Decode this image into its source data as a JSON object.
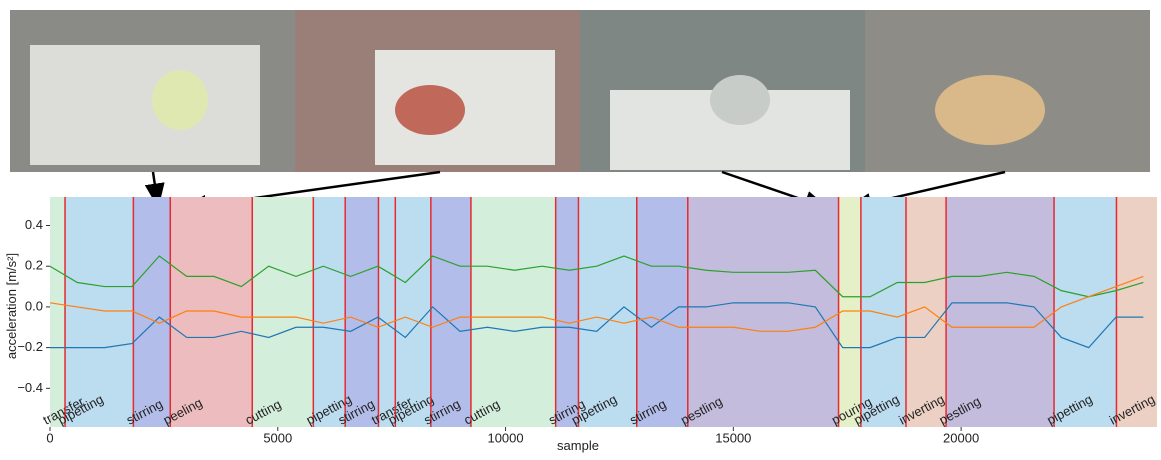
{
  "chart_data": {
    "type": "line",
    "xlabel": "sample",
    "ylabel": "acceleration [m/s²]",
    "xlim": [
      0,
      24300
    ],
    "ylim": [
      -0.59,
      0.54
    ],
    "xticks": [
      0,
      5000,
      10000,
      15000,
      20000
    ],
    "yticks": [
      0.4,
      0.2,
      {
        "value": 0,
        "label": "0.0"
      },
      {
        "value": -0.2,
        "label": "−0.2"
      },
      {
        "value": -0.4,
        "label": "−0.4"
      }
    ],
    "boundary_color": "#e8292f",
    "segments": [
      {
        "label": "transfer",
        "start": 0,
        "end": 330,
        "color": "#d4eedc"
      },
      {
        "label": "pipetting",
        "start": 330,
        "end": 1830,
        "color": "#bcdcf0"
      },
      {
        "label": "stirring",
        "start": 1830,
        "end": 2640,
        "color": "#b3bde9"
      },
      {
        "label": "peeling",
        "start": 2640,
        "end": 4440,
        "color": "#ecbcbe"
      },
      {
        "label": "cutting",
        "start": 4440,
        "end": 5780,
        "color": "#d4eedc"
      },
      {
        "label": "pipetting",
        "start": 5780,
        "end": 6480,
        "color": "#bcdcf0"
      },
      {
        "label": "stirring",
        "start": 6480,
        "end": 7210,
        "color": "#b3bde9"
      },
      {
        "label": "transfer",
        "start": 7210,
        "end": 7580,
        "color": "#bcdcf0"
      },
      {
        "label": "pipetting",
        "start": 7580,
        "end": 8360,
        "color": "#bcdcf0"
      },
      {
        "label": "stirring",
        "start": 8360,
        "end": 9240,
        "color": "#b3bde9"
      },
      {
        "label": "cutting",
        "start": 9240,
        "end": 11100,
        "color": "#d4eedc"
      },
      {
        "label": "stirring",
        "start": 11100,
        "end": 11600,
        "color": "#b3bde9"
      },
      {
        "label": "pipetting",
        "start": 11600,
        "end": 12880,
        "color": "#bcdcf0"
      },
      {
        "label": "stirring",
        "start": 12880,
        "end": 14000,
        "color": "#b3bde9"
      },
      {
        "label": "pestling",
        "start": 14000,
        "end": 17310,
        "color": "#c3bcdc"
      },
      {
        "label": "pouring",
        "start": 17310,
        "end": 17800,
        "color": "#e6f0c8"
      },
      {
        "label": "pipetting",
        "start": 17800,
        "end": 18790,
        "color": "#bcdcf0"
      },
      {
        "label": "inverting",
        "start": 18790,
        "end": 19670,
        "color": "#edd0c4"
      },
      {
        "label": "pestling",
        "start": 19670,
        "end": 22040,
        "color": "#c3bcdc"
      },
      {
        "label": "pipetting",
        "start": 22040,
        "end": 23410,
        "color": "#bcdcf0"
      },
      {
        "label": "inverting",
        "start": 23410,
        "end": 24300,
        "color": "#edd0c4"
      }
    ],
    "x": [
      0,
      600,
      1200,
      1800,
      2400,
      3000,
      3600,
      4200,
      4800,
      5400,
      6000,
      6600,
      7200,
      7800,
      8400,
      9000,
      9600,
      10200,
      10800,
      11400,
      12000,
      12600,
      13200,
      13800,
      14400,
      15000,
      15600,
      16200,
      16800,
      17400,
      18000,
      18600,
      19200,
      19800,
      20400,
      21000,
      21600,
      22200,
      22800,
      23400,
      24000
    ],
    "series": [
      {
        "color": "#2ca02c",
        "values": [
          0.2,
          0.12,
          0.1,
          0.1,
          0.25,
          0.15,
          0.15,
          0.1,
          0.2,
          0.15,
          0.2,
          0.15,
          0.2,
          0.12,
          0.25,
          0.2,
          0.2,
          0.18,
          0.2,
          0.18,
          0.2,
          0.25,
          0.2,
          0.2,
          0.18,
          0.17,
          0.17,
          0.17,
          0.18,
          0.05,
          0.05,
          0.12,
          0.12,
          0.15,
          0.15,
          0.17,
          0.15,
          0.08,
          0.05,
          0.08,
          0.12
        ]
      },
      {
        "color": "#1f77b4",
        "values": [
          -0.2,
          -0.2,
          -0.2,
          -0.18,
          -0.05,
          -0.15,
          -0.15,
          -0.12,
          -0.15,
          -0.1,
          -0.1,
          -0.12,
          -0.05,
          -0.15,
          0,
          -0.12,
          -0.1,
          -0.12,
          -0.1,
          -0.1,
          -0.12,
          0,
          -0.1,
          0,
          0,
          0.02,
          0.02,
          0.02,
          0,
          -0.2,
          -0.2,
          -0.15,
          -0.15,
          0.02,
          0.02,
          0.02,
          0,
          -0.15,
          -0.2,
          -0.05,
          -0.05
        ]
      },
      {
        "color": "#ff7f0e",
        "values": [
          0.02,
          0,
          -0.02,
          -0.02,
          -0.08,
          -0.02,
          -0.02,
          -0.05,
          -0.05,
          -0.05,
          -0.08,
          -0.05,
          -0.1,
          -0.05,
          -0.1,
          -0.05,
          -0.05,
          -0.05,
          -0.05,
          -0.08,
          -0.05,
          -0.08,
          -0.05,
          -0.1,
          -0.1,
          -0.1,
          -0.12,
          -0.12,
          -0.1,
          -0.02,
          -0.02,
          -0.05,
          0,
          -0.1,
          -0.1,
          -0.1,
          -0.1,
          0,
          0.05,
          0.1,
          0.15
        ]
      }
    ]
  }
}
